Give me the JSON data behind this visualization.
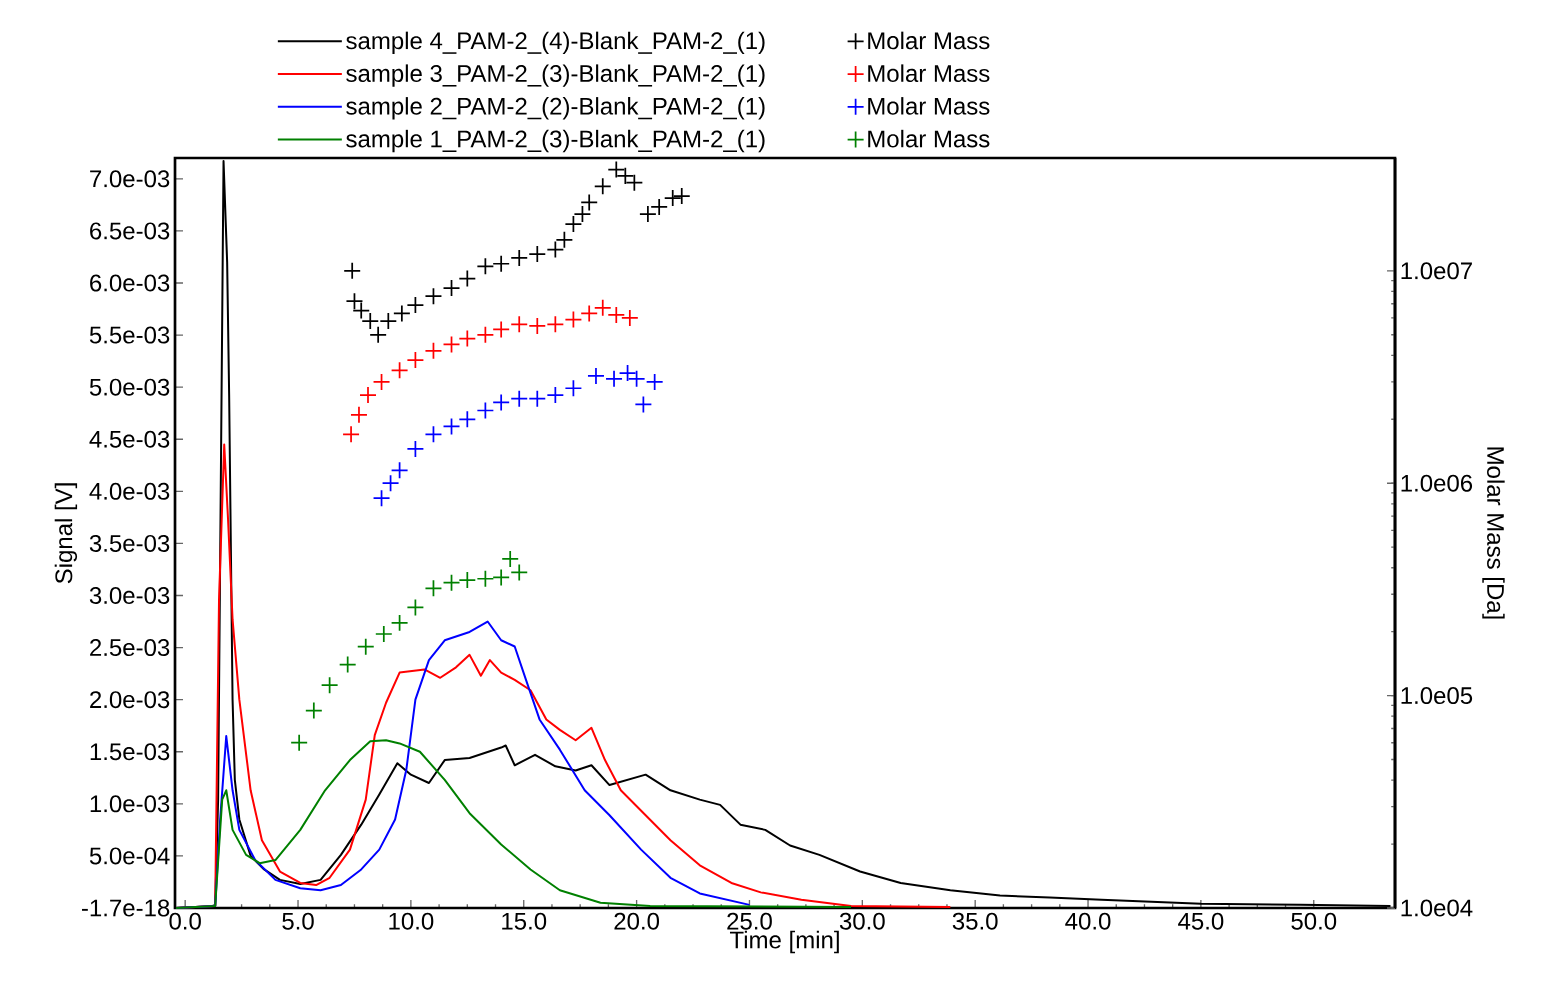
{
  "chart_data": {
    "type": "line",
    "xlabel": "Time [min]",
    "ylabel": "Signal [V]",
    "y2label": "Molar Mass [Da]",
    "xlim": [
      -0.45,
      53.6
    ],
    "ylim": [
      0,
      0.0072
    ],
    "y2lim": [
      10000,
      34000000
    ],
    "log": "y2",
    "legend": "top",
    "line_style": "solid",
    "xticks": [
      {
        "value": 0,
        "label": "0.0"
      },
      {
        "value": 5,
        "label": "5.0"
      },
      {
        "value": 10,
        "label": "10.0"
      },
      {
        "value": 15,
        "label": "15.0"
      },
      {
        "value": 20,
        "label": "20.0"
      },
      {
        "value": 25,
        "label": "25.0"
      },
      {
        "value": 30,
        "label": "30.0"
      },
      {
        "value": 35,
        "label": "35.0"
      },
      {
        "value": 40,
        "label": "40.0"
      },
      {
        "value": 45,
        "label": "45.0"
      },
      {
        "value": 50,
        "label": "50.0"
      }
    ],
    "yticks": [
      {
        "value": 0,
        "label": "-1.7e-18"
      },
      {
        "value": 0.0005,
        "label": "5.0e-04"
      },
      {
        "value": 0.001,
        "label": "1.0e-03"
      },
      {
        "value": 0.0015,
        "label": "1.5e-03"
      },
      {
        "value": 0.002,
        "label": "2.0e-03"
      },
      {
        "value": 0.0025,
        "label": "2.5e-03"
      },
      {
        "value": 0.003,
        "label": "3.0e-03"
      },
      {
        "value": 0.0035,
        "label": "3.5e-03"
      },
      {
        "value": 0.004,
        "label": "4.0e-03"
      },
      {
        "value": 0.0045,
        "label": "4.5e-03"
      },
      {
        "value": 0.005,
        "label": "5.0e-03"
      },
      {
        "value": 0.0055,
        "label": "5.5e-03"
      },
      {
        "value": 0.006,
        "label": "6.0e-03"
      },
      {
        "value": 0.0065,
        "label": "6.5e-03"
      },
      {
        "value": 0.007,
        "label": "7.0e-03"
      }
    ],
    "y2ticks": [
      {
        "value": 10000,
        "label": "1.0e04"
      },
      {
        "value": 100000,
        "label": "1.0e05"
      },
      {
        "value": 1000000,
        "label": "1.0e06"
      },
      {
        "value": 10000000,
        "label": "1.0e07"
      }
    ],
    "series": [
      {
        "name": "sample 4_PAM-2_(4)-Blank_PAM-2_(1)",
        "axis": "y",
        "color": "#000000",
        "marker": "none",
        "x": [
          -0.4,
          1.33,
          1.46,
          1.7,
          1.86,
          1.95,
          2.1,
          2.2,
          2.4,
          2.9,
          3.5,
          4.2,
          5.1,
          6.0,
          6.9,
          7.8,
          8.6,
          9.4,
          10.0,
          10.8,
          11.5,
          12.6,
          14.0,
          14.2,
          14.6,
          15.5,
          16.4,
          17.3,
          18.0,
          18.8,
          20.4,
          21.5,
          22.8,
          23.7,
          24.6,
          25.7,
          26.8,
          28.1,
          29.9,
          31.7,
          33.9,
          36.1,
          38.3,
          40.6,
          45.0,
          49.4,
          53.4
        ],
        "values": [
          0,
          2e-05,
          0.00104,
          0.00717,
          0.0062,
          0.0049,
          0.002,
          0.00123,
          0.00085,
          0.0005,
          0.00037,
          0.00027,
          0.00023,
          0.00027,
          0.00051,
          0.0008,
          0.00109,
          0.00139,
          0.00128,
          0.0012,
          0.00142,
          0.00144,
          0.00154,
          0.00156,
          0.00137,
          0.00147,
          0.00136,
          0.00132,
          0.00137,
          0.00118,
          0.00128,
          0.00113,
          0.00104,
          0.00099,
          0.0008,
          0.00075,
          0.0006,
          0.00051,
          0.00035,
          0.00024,
          0.00017,
          0.00012,
          0.0001,
          8e-05,
          4e-05,
          3e-05,
          2e-05
        ]
      },
      {
        "name": "Molar Mass",
        "type": "scatter",
        "axis": "y2",
        "color": "#000000",
        "marker": "cross",
        "x": [
          7.4,
          7.5,
          7.8,
          8.2,
          8.55,
          9.0,
          9.6,
          10.2,
          11.0,
          11.8,
          12.5,
          13.3,
          14.0,
          14.8,
          15.6,
          16.4,
          16.8,
          17.2,
          17.6,
          17.9,
          18.5,
          19.1,
          19.5,
          19.9,
          20.5,
          21.0,
          21.6,
          22.0
        ],
        "values": [
          10000000,
          7200000,
          6500000,
          5800000,
          5000000,
          5800000,
          6300000,
          6900000,
          7600000,
          8300000,
          9200000,
          10500000,
          10800000,
          11500000,
          12000000,
          12600000,
          14000000,
          16600000,
          18500000,
          21000000,
          25000000,
          30000000,
          28000000,
          26000000,
          18500000,
          20000000,
          22000000,
          22500000
        ]
      },
      {
        "name": "sample 3_PAM-2_(3)-Blank_PAM-2_(1)",
        "axis": "y",
        "color": "#ff0000",
        "marker": "none",
        "x": [
          -0.4,
          1.33,
          1.5,
          1.73,
          1.9,
          2.1,
          2.4,
          2.9,
          3.4,
          4.2,
          5.1,
          5.8,
          6.4,
          7.3,
          8.0,
          8.4,
          8.9,
          9.5,
          10.6,
          11.3,
          12.0,
          12.6,
          13.1,
          13.5,
          14.0,
          14.6,
          15.3,
          16.0,
          16.6,
          17.3,
          18.0,
          18.6,
          19.3,
          20.4,
          21.5,
          22.8,
          24.2,
          25.5,
          27.3,
          29.5,
          33.9
        ],
        "values": [
          0,
          2e-05,
          0.00296,
          0.00445,
          0.00373,
          0.00277,
          0.002,
          0.00113,
          0.00065,
          0.00035,
          0.00024,
          0.00022,
          0.00029,
          0.00056,
          0.00104,
          0.00166,
          0.00197,
          0.00226,
          0.00229,
          0.00221,
          0.00231,
          0.00243,
          0.00223,
          0.00238,
          0.00226,
          0.00219,
          0.00209,
          0.00181,
          0.00171,
          0.00161,
          0.00173,
          0.00142,
          0.00113,
          0.00089,
          0.00065,
          0.00041,
          0.00024,
          0.00015,
          8e-05,
          2e-05,
          1e-05
        ]
      },
      {
        "name": "Molar Mass",
        "type": "scatter",
        "axis": "y2",
        "color": "#ff0000",
        "marker": "cross",
        "x": [
          7.35,
          7.7,
          8.1,
          8.7,
          9.5,
          10.2,
          11.0,
          11.8,
          12.5,
          13.3,
          14.0,
          14.8,
          15.6,
          16.4,
          17.2,
          17.9,
          18.5,
          19.1,
          19.7
        ],
        "values": [
          1700000,
          2100000,
          2600000,
          3000000,
          3400000,
          3800000,
          4200000,
          4500000,
          4800000,
          5000000,
          5300000,
          5600000,
          5500000,
          5600000,
          5900000,
          6300000,
          6700000,
          6200000,
          6000000
        ]
      },
      {
        "name": "sample 2_PAM-2_(2)-Blank_PAM-2_(1)",
        "axis": "y",
        "color": "#0000ff",
        "marker": "none",
        "x": [
          -0.4,
          1.33,
          1.55,
          1.82,
          2.1,
          2.4,
          3.1,
          4.0,
          5.1,
          6.0,
          6.9,
          7.8,
          8.6,
          9.3,
          9.8,
          10.2,
          10.8,
          11.5,
          12.6,
          13.4,
          14.0,
          14.6,
          15.1,
          15.7,
          16.6,
          17.7,
          18.8,
          20.2,
          21.5,
          22.8,
          25.0
        ],
        "values": [
          0,
          2e-05,
          0.00085,
          0.00165,
          0.00113,
          0.00075,
          0.00046,
          0.00027,
          0.00019,
          0.00017,
          0.00022,
          0.00037,
          0.00056,
          0.00085,
          0.00133,
          0.002,
          0.00238,
          0.00257,
          0.00265,
          0.00275,
          0.00257,
          0.00251,
          0.00219,
          0.00181,
          0.00152,
          0.00113,
          0.00089,
          0.00056,
          0.00029,
          0.00014,
          3e-05
        ]
      },
      {
        "name": "Molar Mass",
        "type": "scatter",
        "axis": "y2",
        "color": "#0000ff",
        "marker": "cross",
        "x": [
          8.7,
          9.1,
          9.5,
          10.2,
          11.0,
          11.8,
          12.5,
          13.3,
          14.0,
          14.8,
          15.6,
          16.4,
          17.2,
          18.2,
          19.0,
          19.6,
          20.0,
          20.3,
          20.8
        ],
        "values": [
          850000,
          1000000,
          1150000,
          1450000,
          1700000,
          1850000,
          2000000,
          2200000,
          2400000,
          2500000,
          2500000,
          2600000,
          2800000,
          3200000,
          3100000,
          3300000,
          3100000,
          2350000,
          3000000
        ]
      },
      {
        "name": "sample 1_PAM-2_(3)-Blank_PAM-2_(1)",
        "axis": "y",
        "color": "#008000",
        "marker": "none",
        "x": [
          -0.4,
          1.33,
          1.64,
          1.82,
          2.1,
          2.7,
          3.3,
          4.0,
          5.1,
          6.2,
          7.3,
          8.2,
          8.9,
          9.5,
          10.4,
          11.5,
          12.6,
          14.0,
          15.3,
          16.6,
          18.4,
          20.6,
          29.5
        ],
        "values": [
          0,
          2e-05,
          0.00104,
          0.00113,
          0.00075,
          0.00051,
          0.00043,
          0.00046,
          0.00075,
          0.00113,
          0.00142,
          0.0016,
          0.00161,
          0.00158,
          0.0015,
          0.00123,
          0.00091,
          0.00061,
          0.00037,
          0.00017,
          5e-05,
          2e-05,
          1e-05
        ]
      },
      {
        "name": "Molar Mass",
        "type": "scatter",
        "axis": "y2",
        "color": "#008000",
        "marker": "cross",
        "x": [
          5.05,
          5.7,
          6.4,
          7.2,
          8.0,
          8.8,
          9.5,
          10.2,
          11.0,
          11.8,
          12.5,
          13.3,
          14.0,
          14.4,
          14.8
        ],
        "values": [
          60000,
          85000,
          112000,
          140000,
          170000,
          195000,
          220000,
          260000,
          320000,
          340000,
          350000,
          355000,
          360000,
          440000,
          380000
        ]
      }
    ]
  }
}
